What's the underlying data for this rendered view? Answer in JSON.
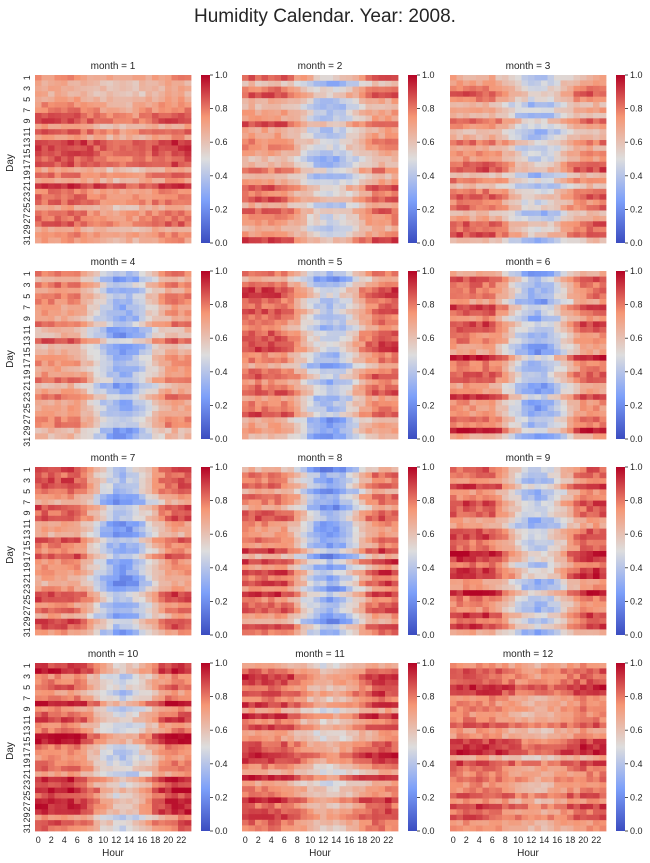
{
  "title": "Humidity Calendar. Year: 2008.",
  "chart_data": {
    "type": "heatmap",
    "layout": "facet grid 4 rows x 3 columns",
    "facet_titles": [
      "month = 1",
      "month = 2",
      "month = 3",
      "month = 4",
      "month = 5",
      "month = 6",
      "month = 7",
      "month = 8",
      "month = 9",
      "month = 10",
      "month = 11",
      "month = 12"
    ],
    "xlabel": "Hour",
    "ylabel": "Day",
    "x_ticks": [
      "0",
      "2",
      "4",
      "6",
      "8",
      "10",
      "12",
      "14",
      "16",
      "18",
      "20",
      "22"
    ],
    "y_ticks": [
      "1",
      "3",
      "5",
      "7",
      "9",
      "11",
      "13",
      "15",
      "17",
      "19",
      "21",
      "23",
      "25",
      "27",
      "29",
      "31"
    ],
    "x_range": [
      0,
      23
    ],
    "y_range": [
      1,
      31
    ],
    "colorbar_ticks": [
      "0.0",
      "0.2",
      "0.4",
      "0.6",
      "0.8",
      "1.0"
    ],
    "value_range": [
      0,
      1
    ],
    "colormap": "coolwarm",
    "colors": {
      "low": "#3b4cc0",
      "mid": "#dddddd",
      "high": "#b40426"
    },
    "days_per_month": [
      31,
      29,
      31,
      30,
      31,
      30,
      31,
      31,
      30,
      31,
      30,
      31
    ],
    "pattern_estimates": [
      {
        "month": 1,
        "night_level": 0.8,
        "midday_level": 0.7
      },
      {
        "month": 2,
        "night_level": 0.75,
        "midday_level": 0.45
      },
      {
        "month": 3,
        "night_level": 0.75,
        "midday_level": 0.45
      },
      {
        "month": 4,
        "night_level": 0.75,
        "midday_level": 0.35
      },
      {
        "month": 5,
        "night_level": 0.78,
        "midday_level": 0.35
      },
      {
        "month": 6,
        "night_level": 0.82,
        "midday_level": 0.35
      },
      {
        "month": 7,
        "night_level": 0.78,
        "midday_level": 0.3
      },
      {
        "month": 8,
        "night_level": 0.78,
        "midday_level": 0.28
      },
      {
        "month": 9,
        "night_level": 0.82,
        "midday_level": 0.4
      },
      {
        "month": 10,
        "night_level": 0.85,
        "midday_level": 0.5
      },
      {
        "month": 11,
        "night_level": 0.82,
        "midday_level": 0.6
      },
      {
        "month": 12,
        "night_level": 0.82,
        "midday_level": 0.7
      }
    ]
  }
}
